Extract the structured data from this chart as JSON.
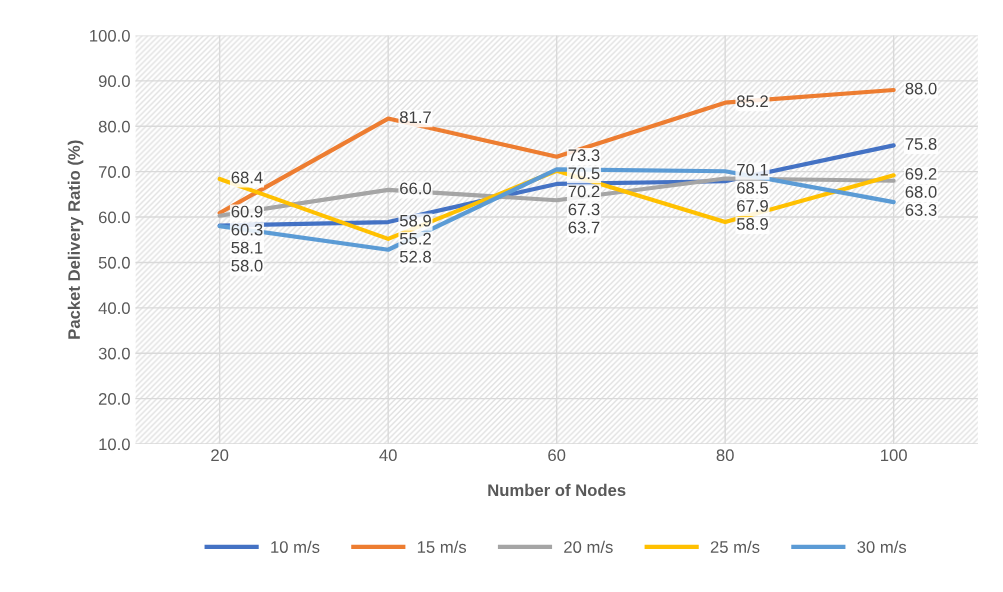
{
  "chart_data": {
    "type": "line",
    "xlabel": "Number of Nodes",
    "ylabel": "Packet Delivery Ratio (%)",
    "categories": [
      "20",
      "40",
      "60",
      "80",
      "100"
    ],
    "series": [
      {
        "name": "10 m/s",
        "color": "#4472c4",
        "values": [
          58.1,
          58.9,
          67.3,
          67.9,
          75.8
        ],
        "value_labels": [
          "58.1",
          "58.9",
          "67.3",
          "67.9",
          "75.8"
        ]
      },
      {
        "name": "15 m/s",
        "color": "#ed7d31",
        "values": [
          60.9,
          81.7,
          73.3,
          85.2,
          88.0
        ],
        "value_labels": [
          "60.9",
          "81.7",
          "73.3",
          "85.2",
          "88.0"
        ]
      },
      {
        "name": "20 m/s",
        "color": "#a5a5a5",
        "values": [
          60.3,
          66.0,
          63.7,
          68.5,
          68.0
        ],
        "value_labels": [
          "60.3",
          "66.0",
          "63.7",
          "68.5",
          "68.0"
        ]
      },
      {
        "name": "25 m/s",
        "color": "#ffc000",
        "values": [
          68.4,
          55.2,
          70.2,
          58.9,
          69.2
        ],
        "value_labels": [
          "68.4",
          "55.2",
          "70.2",
          "58.9",
          "69.2"
        ]
      },
      {
        "name": "30 m/s",
        "color": "#5b9bd5",
        "values": [
          58.0,
          52.8,
          70.5,
          70.1,
          63.3
        ],
        "value_labels": [
          "58.0",
          "52.8",
          "70.5",
          "70.1",
          "63.3"
        ]
      }
    ],
    "ylim": [
      10,
      100
    ],
    "yticks": [
      {
        "value": 10,
        "label": "10.0"
      },
      {
        "value": 20,
        "label": "20.0"
      },
      {
        "value": 30,
        "label": "30.0"
      },
      {
        "value": 40,
        "label": "40.0"
      },
      {
        "value": 50,
        "label": "50.0"
      },
      {
        "value": 60,
        "label": "60.0"
      },
      {
        "value": 70,
        "label": "70.0"
      },
      {
        "value": 80,
        "label": "80.0"
      },
      {
        "value": 90,
        "label": "90.0"
      },
      {
        "value": 100,
        "label": "100.0"
      }
    ],
    "grid": true,
    "legend": "bottom",
    "marker": "none",
    "line_style": "solid"
  }
}
